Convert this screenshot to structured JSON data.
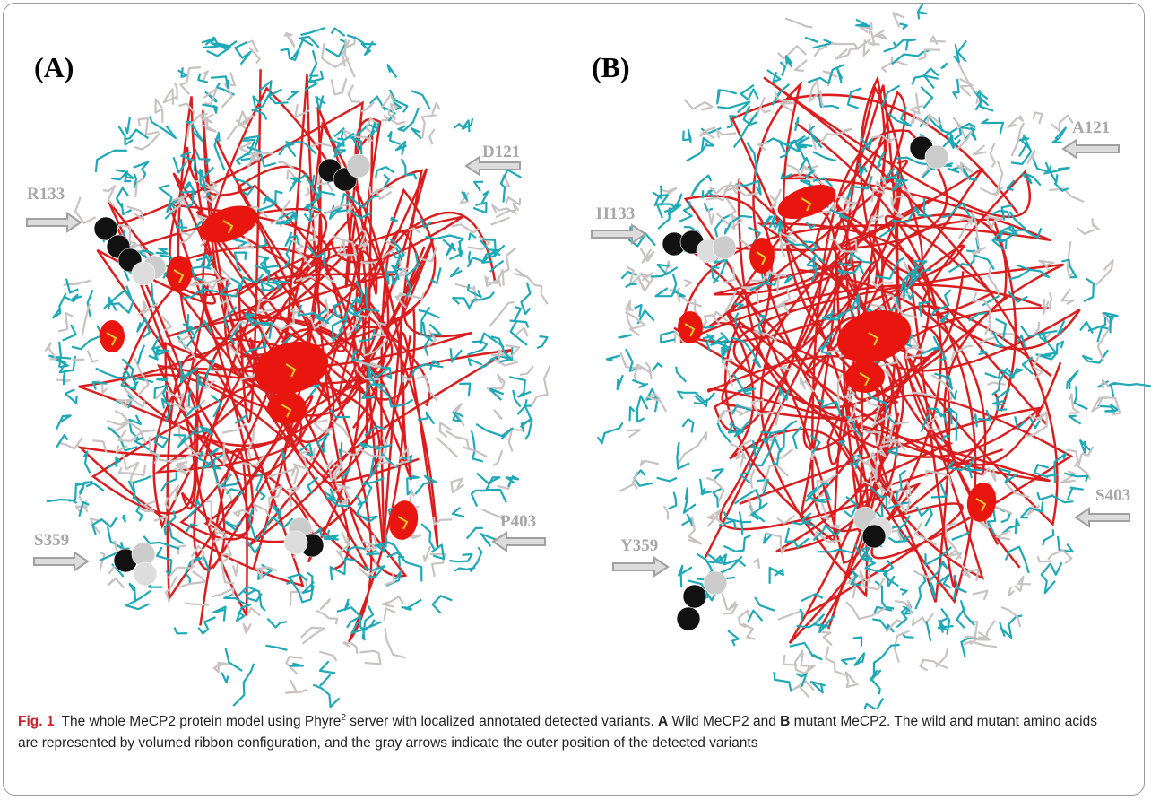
{
  "figure": {
    "panels": [
      {
        "label": "(A)",
        "annotations": [
          "D121",
          "R133",
          "S359",
          "P403"
        ]
      },
      {
        "label": "(B)",
        "annotations": [
          "A121",
          "H133",
          "Y359",
          "S403"
        ]
      }
    ],
    "caption": {
      "number": "Fig. 1",
      "text_1": "The whole MeCP2 protein model using Phyre",
      "superscript": "2",
      "text_2": " server with localized annotated detected variants. ",
      "bold_a": "A",
      "text_3": " Wild MeCP2 and ",
      "bold_b": "B",
      "text_4": " mutant MeCP2. The wild and mutant amino acids are represented by volumed ribbon configuration, and the gray arrows indicate the outer position of the detected variants"
    }
  }
}
